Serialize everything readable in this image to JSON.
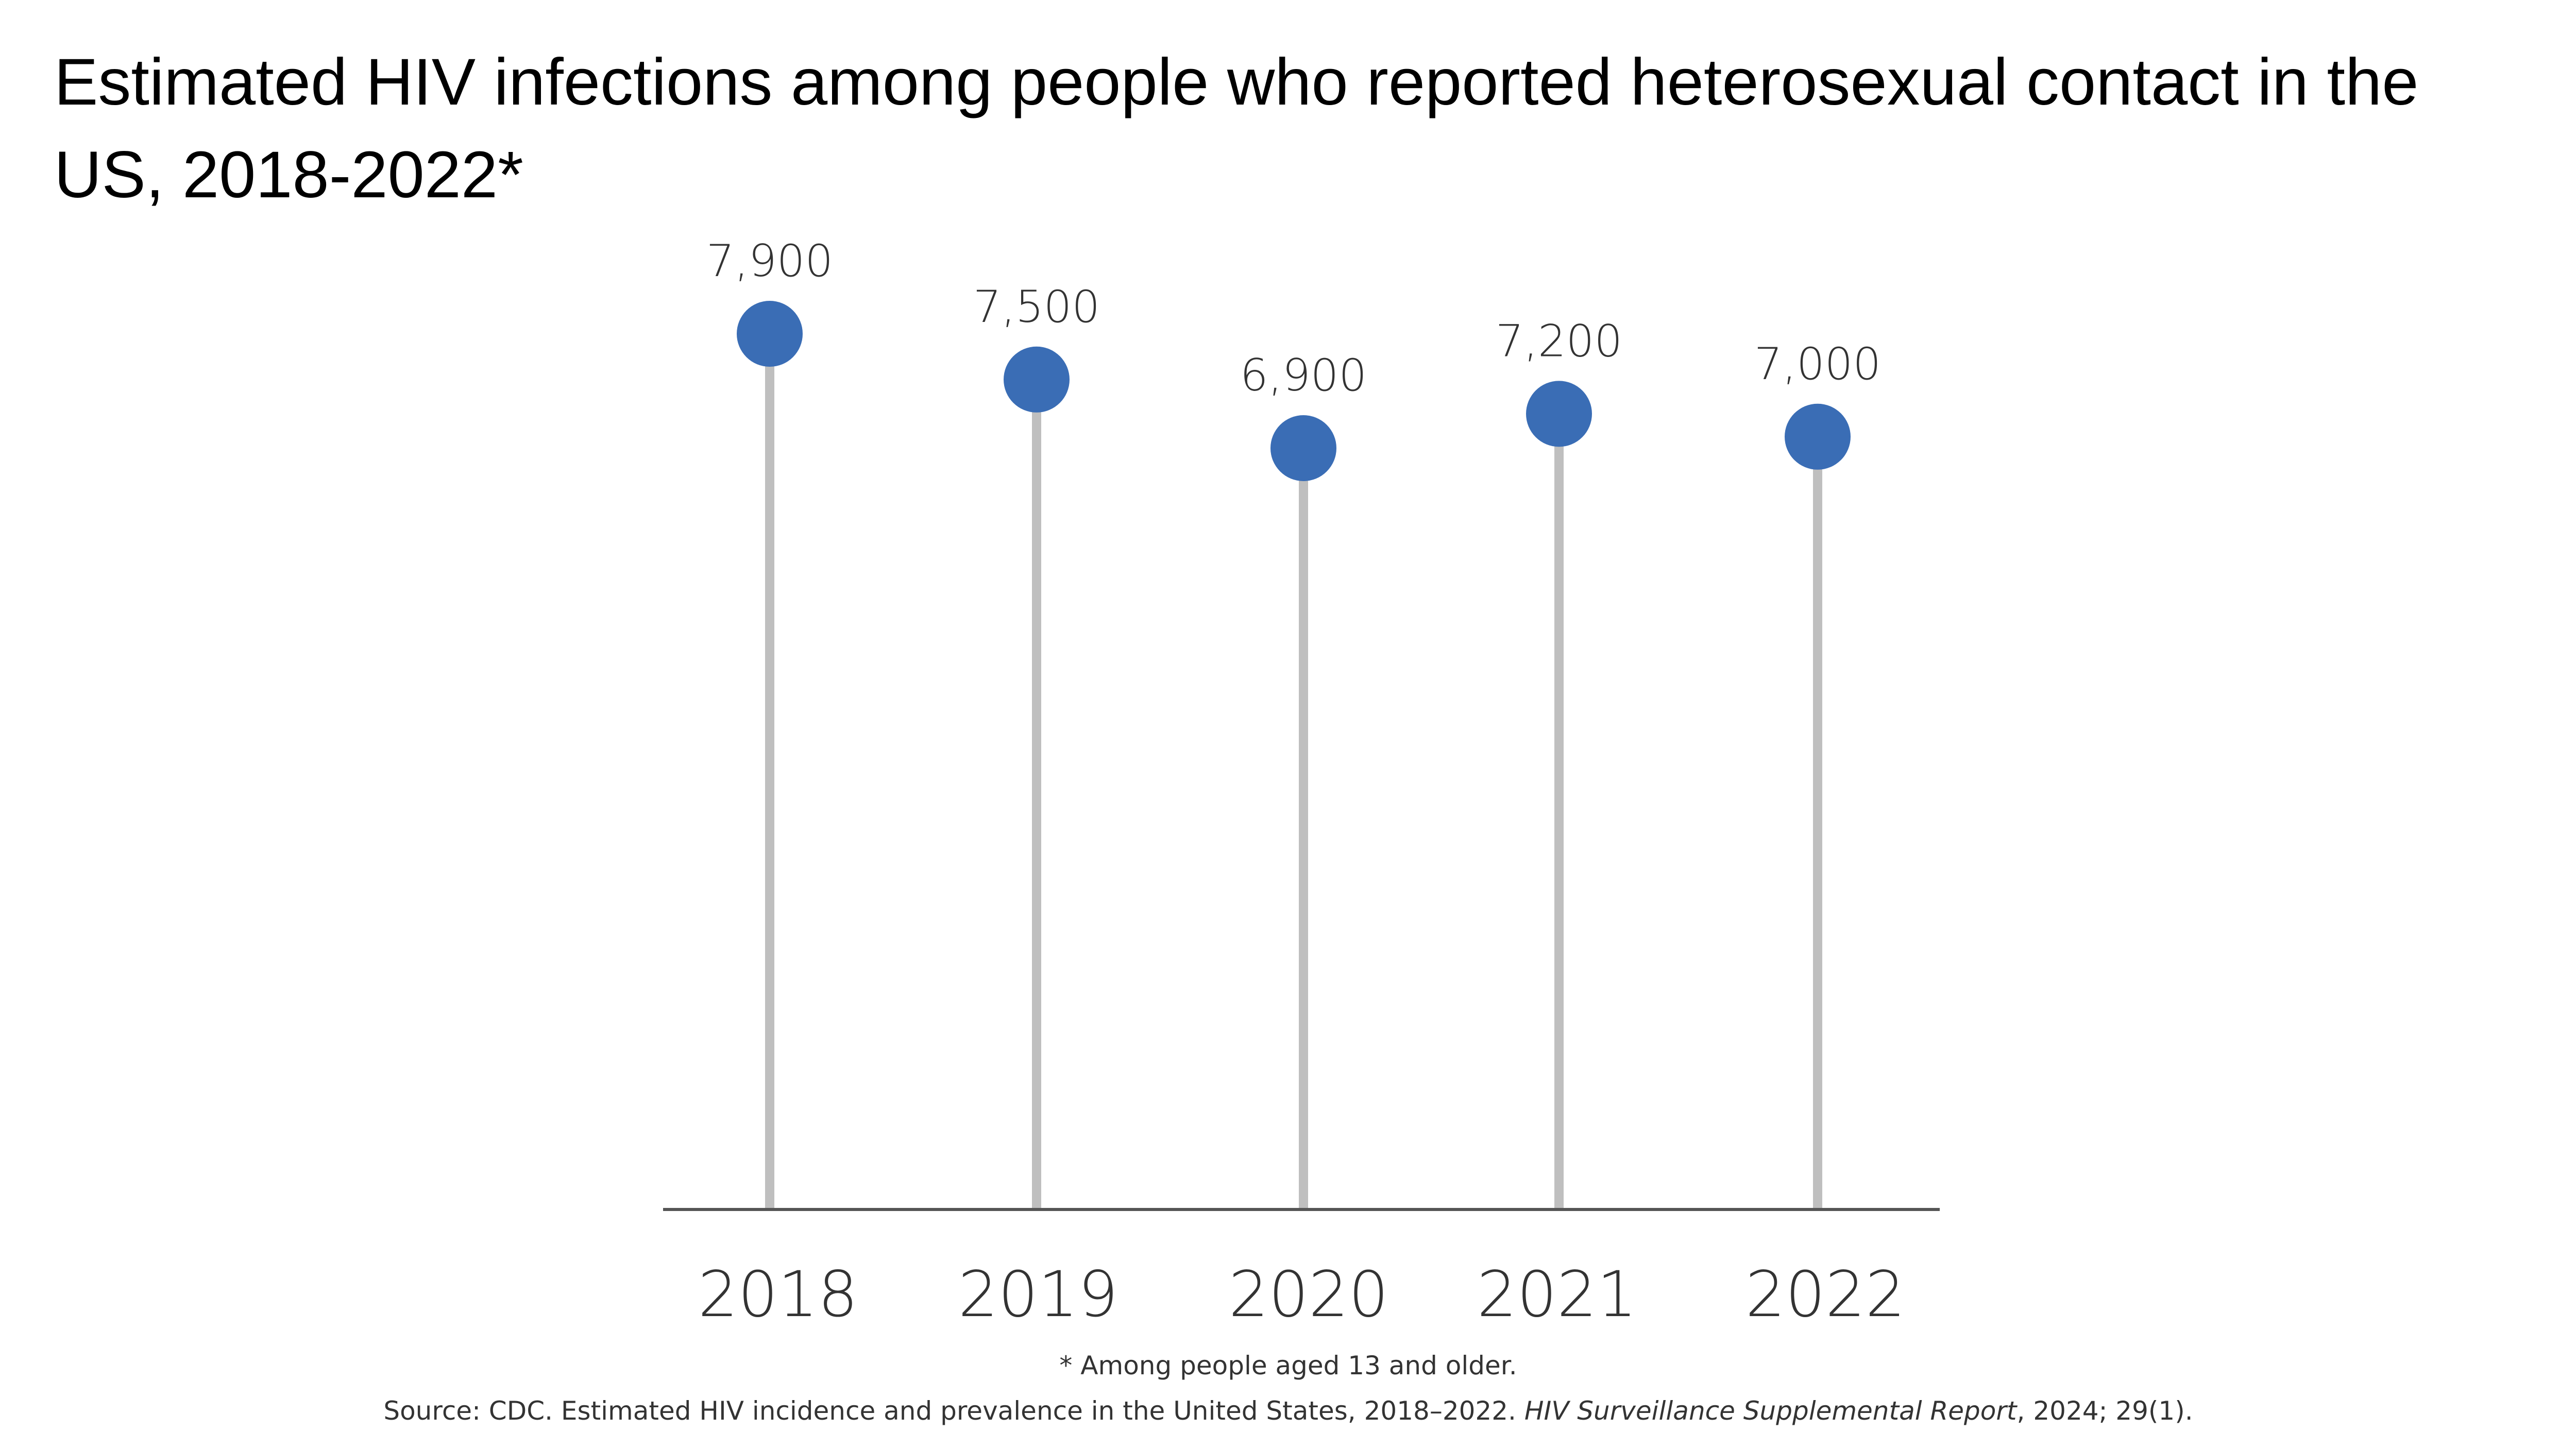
{
  "title": "Estimated HIV infections among people who reported heterosexual contact in the US, 2018-2022*",
  "footnote": "* Among people aged 13 and older.",
  "source": {
    "prefix": "Source: CDC. Estimated HIV incidence and prevalence in the United States, 2018–2022. ",
    "journal": "HIV Surveillance Supplemental Report",
    "suffix": ", 2024; 29(1)."
  },
  "colors": {
    "dot": "#3a6db5",
    "stem": "#bfbfbf",
    "axis": "#555555",
    "label": "#333333"
  },
  "chart_data": {
    "type": "lollipop",
    "categories": [
      "2018",
      "2019",
      "2020",
      "2021",
      "2022"
    ],
    "values": [
      7900,
      7500,
      6900,
      7200,
      7000
    ],
    "value_labels": [
      "7,900",
      "7,500",
      "6,900",
      "7,200",
      "7,000"
    ],
    "title": "Estimated HIV infections among people who reported heterosexual contact in the US, 2018-2022*",
    "xlabel": "",
    "ylabel": "",
    "ylim": [
      0,
      8000
    ],
    "grid": false,
    "legend": "none"
  }
}
